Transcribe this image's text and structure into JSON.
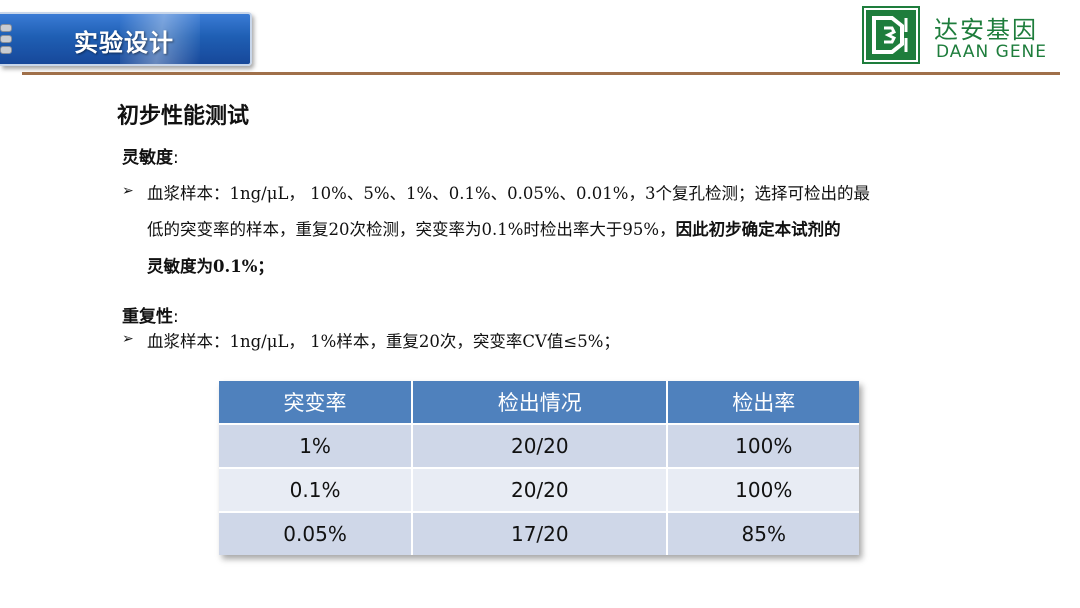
{
  "header": {
    "title": "实验设计"
  },
  "logo": {
    "name_cn": "达安基因",
    "name_en": "DAAN GENE"
  },
  "heading": "初步性能测试",
  "sensitivity": {
    "label": "灵敏度",
    "colon": ":",
    "line1": "血浆样本：1ng/μL， 10%、5%、1%、0.1%、0.05%、0.01%，3个复孔检测；选择可检出的最",
    "line2_normal": "低的突变率的样本，重复20次检测，突变率为0.1%时检出率大于95%，",
    "line2_bold": "因此初步确定本试剂的",
    "line3_bold": "灵敏度为0.1%；"
  },
  "repeatability": {
    "label": "重复性",
    "colon": ":",
    "line1": "血浆样本：1ng/μL， 1%样本，重复20次，突变率CV值≤5%；"
  },
  "table": {
    "headers": [
      "突变率",
      "检出情况",
      "检出率"
    ],
    "rows": [
      [
        "1%",
        "20/20",
        "100%"
      ],
      [
        "0.1%",
        "20/20",
        "100%"
      ],
      [
        "0.05%",
        "17/20",
        "85%"
      ]
    ]
  },
  "colors": {
    "header_blue": "#1f5fb4",
    "table_header": "#4f81bd",
    "logo_green": "#1e7d3c",
    "rule": "#a0704a"
  }
}
